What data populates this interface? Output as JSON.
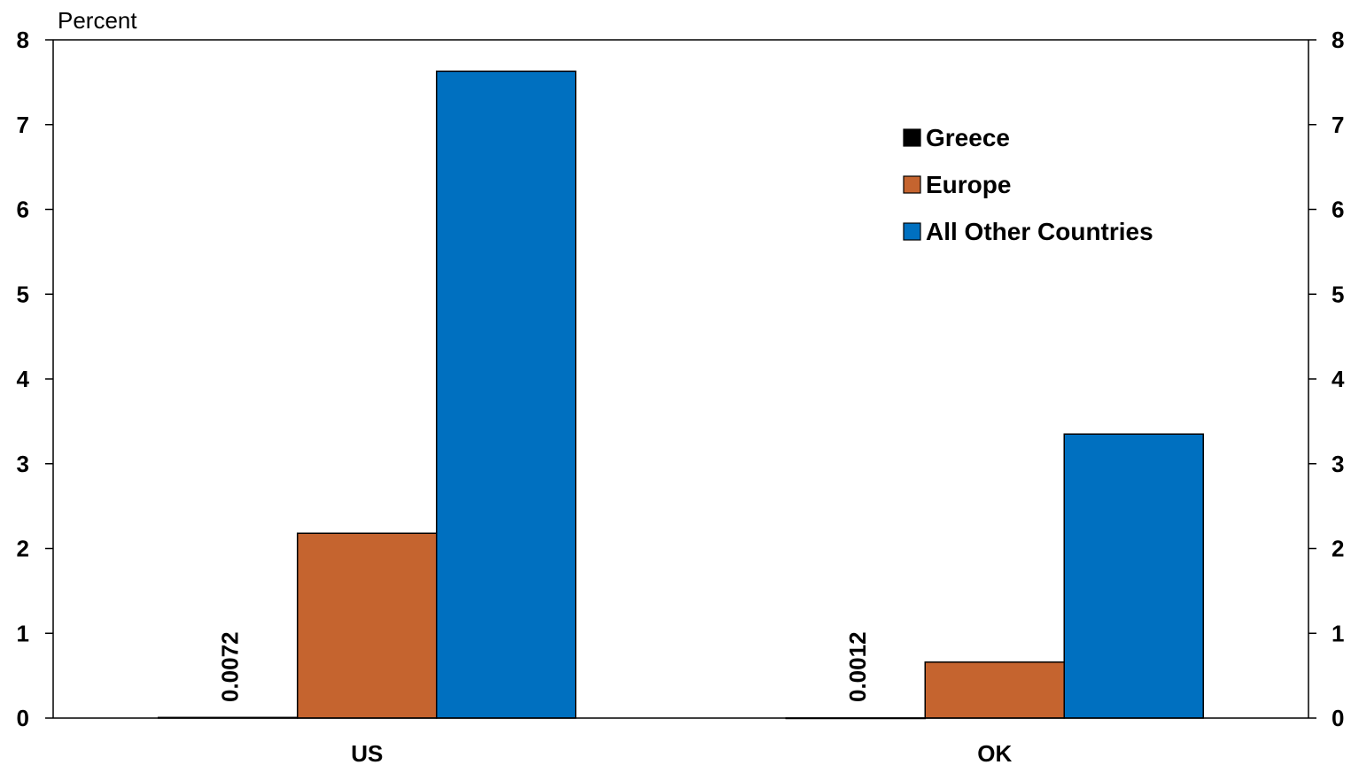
{
  "chart_data": {
    "type": "bar",
    "unit_label": "Percent",
    "categories": [
      "US",
      "OK"
    ],
    "series": [
      {
        "name": "Greece",
        "values": [
          0.0072,
          0.0012
        ],
        "color": "#000000"
      },
      {
        "name": "Europe",
        "values": [
          2.18,
          0.66
        ],
        "color": "#C5642F"
      },
      {
        "name": "All Other Countries",
        "values": [
          7.63,
          3.35
        ],
        "color": "#0070C0"
      }
    ],
    "data_labels": [
      {
        "category": "US",
        "series": "Greece",
        "text": "0.0072"
      },
      {
        "category": "OK",
        "series": "Greece",
        "text": "0.0012"
      }
    ],
    "ylim": [
      0,
      8
    ],
    "yticks": [
      0,
      1,
      2,
      3,
      4,
      5,
      6,
      7,
      8
    ],
    "secondary_yticks": [
      0,
      1,
      2,
      3,
      4,
      5,
      6,
      7,
      8
    ],
    "legend_position": "top-right",
    "grid": false
  }
}
